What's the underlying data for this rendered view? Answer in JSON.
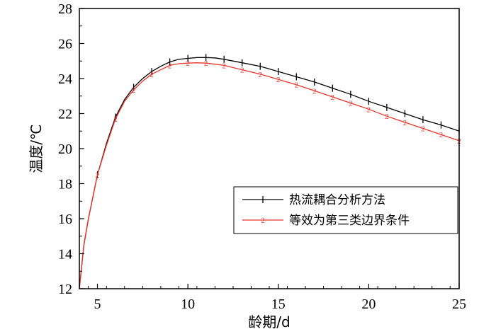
{
  "chart_data": {
    "type": "line",
    "title": "",
    "xlabel": "龄期/d",
    "ylabel": "温度/℃",
    "xlim": [
      4,
      25
    ],
    "ylim": [
      12,
      28
    ],
    "xticks": [
      5,
      10,
      15,
      20,
      25
    ],
    "yticks": [
      12,
      14,
      16,
      18,
      20,
      22,
      24,
      26,
      28
    ],
    "grid": false,
    "legend_position": "bottom-right",
    "series": [
      {
        "name": "热流耦合分析方法",
        "marker": "1",
        "color": "#000000",
        "x": [
          4,
          4.25,
          4.5,
          5,
          5.5,
          6,
          6.5,
          7,
          7.5,
          8,
          8.5,
          9,
          9.5,
          10,
          10.5,
          11,
          11.5,
          12,
          13,
          14,
          15,
          16,
          17,
          18,
          19,
          20,
          21,
          22,
          23,
          24,
          25
        ],
        "y": [
          12.0,
          14.5,
          16.0,
          18.5,
          20.3,
          21.8,
          22.8,
          23.5,
          24.0,
          24.4,
          24.7,
          24.95,
          25.1,
          25.15,
          25.2,
          25.2,
          25.18,
          25.1,
          24.9,
          24.7,
          24.4,
          24.1,
          23.8,
          23.45,
          23.1,
          22.7,
          22.35,
          22.0,
          21.65,
          21.35,
          21.0
        ]
      },
      {
        "name": "等效为第三类边界条件",
        "marker": "2",
        "color": "#e8352b",
        "x": [
          4,
          4.25,
          4.5,
          5,
          5.5,
          6,
          6.5,
          7,
          7.5,
          8,
          8.5,
          9,
          9.5,
          10,
          10.5,
          11,
          11.5,
          12,
          13,
          14,
          15,
          16,
          17,
          18,
          19,
          20,
          21,
          22,
          23,
          24,
          25
        ],
        "y": [
          12.0,
          14.5,
          16.0,
          18.5,
          20.2,
          21.7,
          22.7,
          23.35,
          23.85,
          24.25,
          24.5,
          24.75,
          24.85,
          24.88,
          24.9,
          24.88,
          24.82,
          24.75,
          24.5,
          24.25,
          23.95,
          23.65,
          23.3,
          22.95,
          22.6,
          22.25,
          21.85,
          21.5,
          21.15,
          20.8,
          20.45
        ]
      }
    ],
    "marker_x": [
      5,
      6,
      7,
      8,
      9,
      10,
      11,
      12,
      13,
      14,
      15,
      16,
      17,
      18,
      19,
      20,
      21,
      22,
      23,
      24,
      25
    ]
  }
}
